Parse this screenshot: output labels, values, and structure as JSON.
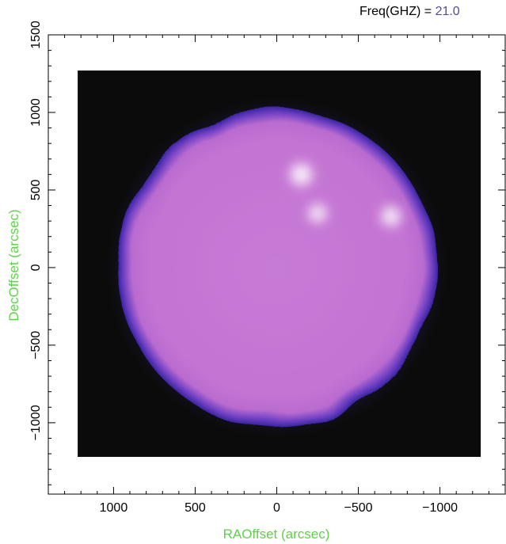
{
  "header": {
    "freq_label": "Freq(GHZ) = ",
    "freq_value": "21.0"
  },
  "colors": {
    "axis_title": "#5fd24a",
    "freq_value": "#5a4aa3",
    "disk_fill": "#c977d2",
    "disk_limb": "#4b2db8",
    "background_map": "#0b0b0b"
  },
  "chart_data": {
    "type": "heatmap",
    "xlabel": "RAOffset (arcsec)",
    "ylabel": "DecOffset (arcsec)",
    "xlim": [
      1400,
      -1400
    ],
    "ylim": [
      -1460,
      1500
    ],
    "x_ticks": [
      {
        "value": 1000,
        "label": "1000"
      },
      {
        "value": 500,
        "label": "500"
      },
      {
        "value": 0,
        "label": "0"
      },
      {
        "value": -500,
        "label": "−500"
      },
      {
        "value": -1000,
        "label": "−1000"
      }
    ],
    "y_ticks": [
      {
        "value": 1500,
        "label": "1500"
      },
      {
        "value": 1000,
        "label": "1000"
      },
      {
        "value": 500,
        "label": "500"
      },
      {
        "value": 0,
        "label": "0"
      },
      {
        "value": -500,
        "label": "−500"
      },
      {
        "value": -1000,
        "label": "−1000"
      }
    ],
    "map_extent": {
      "x": [
        1220,
        -1250
      ],
      "y": [
        -1220,
        1270
      ]
    },
    "solar_disk": {
      "center_x": 0,
      "center_y": 0,
      "radius": 1000
    },
    "bright_sources": [
      {
        "x": -150,
        "y": 600,
        "intensity": 1.0
      },
      {
        "x": -250,
        "y": 350,
        "intensity": 0.7
      },
      {
        "x": -700,
        "y": 330,
        "intensity": 0.8
      }
    ],
    "grid": false
  }
}
